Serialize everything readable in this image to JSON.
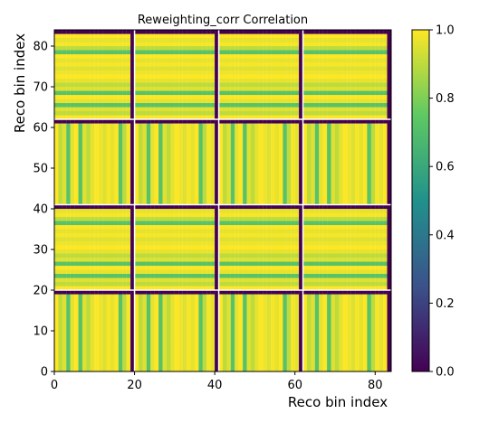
{
  "chart_data": {
    "type": "heatmap",
    "title": "Reweighting_corr Correlation",
    "xlabel": "Reco bin index",
    "ylabel": "Reco bin index",
    "nbins": 84,
    "block_boundaries": [
      20,
      41,
      62
    ],
    "xlim": [
      0,
      84
    ],
    "ylim": [
      0,
      84
    ],
    "x_ticks": [
      0,
      20,
      40,
      60,
      80
    ],
    "y_ticks": [
      0,
      10,
      20,
      30,
      40,
      50,
      60,
      70,
      80
    ],
    "colormap": "viridis",
    "colorbar": {
      "min": 0.0,
      "max": 1.0,
      "ticks": [
        "0.0",
        "0.2",
        "0.4",
        "0.6",
        "0.8",
        "1.0"
      ]
    },
    "block_pattern": {
      "low_correlation_min": 0.0,
      "high_correlation_max": 1.0,
      "stripe_value": 0.72,
      "row_blocks_from_bottom": [
        "vertical stripes",
        "horizontal stripes",
        "vertical stripes",
        "horizontal stripes"
      ]
    }
  }
}
